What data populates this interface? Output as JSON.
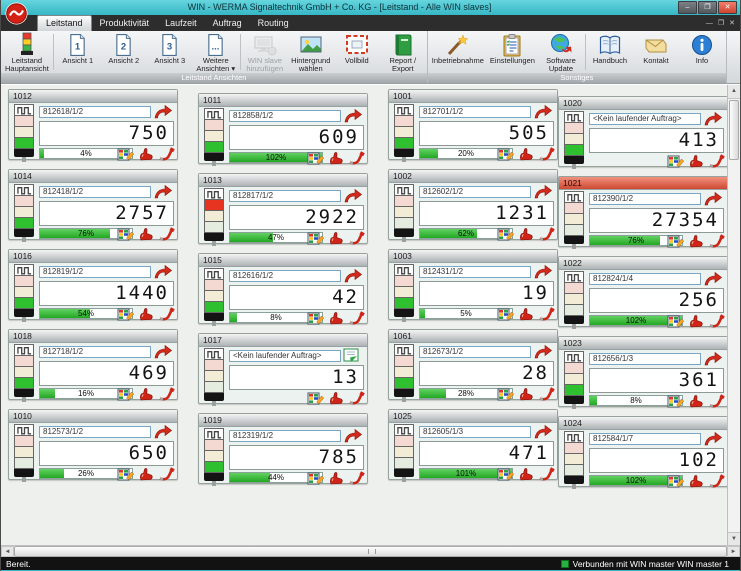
{
  "window": {
    "title": "WIN - WERMA Signaltechnik GmbH + Co. KG - [Leitstand - Alle WIN slaves]",
    "controls": {
      "minimize": "–",
      "maximize": "❐",
      "close": "✕"
    },
    "mdi_controls": {
      "minimize": "—",
      "restore": "❐",
      "close": "✕"
    }
  },
  "tabs": [
    {
      "label": "Leitstand",
      "active": true
    },
    {
      "label": "Produktivität",
      "active": false
    },
    {
      "label": "Laufzeit",
      "active": false
    },
    {
      "label": "Auftrag",
      "active": false
    },
    {
      "label": "Routing",
      "active": false
    }
  ],
  "ribbon": {
    "groups": [
      {
        "caption": "Leitstand Ansichten",
        "buttons": [
          {
            "label": "Leitstand\nHauptansicht",
            "icon": "signal-tower-icon"
          },
          {
            "label": "Ansicht 1",
            "icon": "page-1-icon",
            "sep_before": true
          },
          {
            "label": "Ansicht 2",
            "icon": "page-2-icon"
          },
          {
            "label": "Ansicht 3",
            "icon": "page-3-icon"
          },
          {
            "label": "Weitere\nAnsichten ▾",
            "icon": "page-more-icon"
          },
          {
            "label": "WIN slave\nhinzufügen",
            "icon": "monitor-add-icon",
            "disabled": true,
            "sep_before": true
          },
          {
            "label": "Hintergrund\nwählen",
            "icon": "picture-icon"
          },
          {
            "label": "Vollbild",
            "icon": "fullscreen-icon"
          },
          {
            "label": "Report /\nExport",
            "icon": "report-icon"
          }
        ]
      },
      {
        "caption": "Sonstiges",
        "buttons": [
          {
            "label": "Inbetriebnahme",
            "icon": "wand-icon"
          },
          {
            "label": "Einstellungen",
            "icon": "clipboard-icon"
          },
          {
            "label": "Software\nUpdate",
            "icon": "globe-icon"
          },
          {
            "label": "Handbuch",
            "icon": "book-icon",
            "sep_before": true
          },
          {
            "label": "Kontakt",
            "icon": "envelope-icon"
          },
          {
            "label": "Info",
            "icon": "info-icon"
          }
        ]
      }
    ]
  },
  "panels": [
    {
      "col": 0,
      "id": "1012",
      "order": "812618/1/2",
      "value": "750",
      "pct": "4%",
      "tower": "green",
      "alarm": false,
      "action": "arrow"
    },
    {
      "col": 0,
      "id": "1014",
      "order": "812418/1/2",
      "value": "2757",
      "pct": "76%",
      "tower": "green",
      "alarm": false,
      "action": "arrow"
    },
    {
      "col": 0,
      "id": "1016",
      "order": "812819/1/2",
      "value": "1440",
      "pct": "54%",
      "tower": "green",
      "alarm": false,
      "action": "arrow"
    },
    {
      "col": 0,
      "id": "1018",
      "order": "812718/1/2",
      "value": "469",
      "pct": "16%",
      "tower": "green",
      "alarm": false,
      "action": "arrow"
    },
    {
      "col": 0,
      "id": "1010",
      "order": "812573/1/2",
      "value": "650",
      "pct": "26%",
      "tower": "off",
      "alarm": false,
      "action": "arrow"
    },
    {
      "col": 1,
      "id": "1011",
      "order": "812858/1/2",
      "value": "609",
      "pct": "102%",
      "tower": "green",
      "alarm": false,
      "action": "arrow"
    },
    {
      "col": 1,
      "id": "1013",
      "order": "812817/1/2",
      "value": "2922",
      "pct": "47%",
      "tower": "red",
      "alarm": false,
      "action": "arrow"
    },
    {
      "col": 1,
      "id": "1015",
      "order": "812616/1/2",
      "value": "42",
      "pct": "8%",
      "tower": "green",
      "alarm": false,
      "action": "arrow"
    },
    {
      "col": 1,
      "id": "1017",
      "order": "<Kein laufender Auftrag>",
      "value": "13",
      "pct": "",
      "tower": "off",
      "alarm": false,
      "action": "doc"
    },
    {
      "col": 1,
      "id": "1019",
      "order": "812319/1/2",
      "value": "785",
      "pct": "44%",
      "tower": "green",
      "alarm": false,
      "action": "arrow"
    },
    {
      "col": 2,
      "id": "1001",
      "order": "812701/1/2",
      "value": "505",
      "pct": "20%",
      "tower": "green",
      "alarm": false,
      "action": "arrow"
    },
    {
      "col": 2,
      "id": "1002",
      "order": "812602/1/2",
      "value": "1231",
      "pct": "62%",
      "tower": "off",
      "alarm": false,
      "action": "arrow"
    },
    {
      "col": 2,
      "id": "1003",
      "order": "812431/1/2",
      "value": "19",
      "pct": "5%",
      "tower": "green",
      "alarm": false,
      "action": "arrow"
    },
    {
      "col": 2,
      "id": "1061",
      "order": "812673/1/2",
      "value": "28",
      "pct": "28%",
      "tower": "green",
      "alarm": false,
      "action": "arrow"
    },
    {
      "col": 2,
      "id": "1025",
      "order": "812605/1/3",
      "value": "471",
      "pct": "101%",
      "tower": "off",
      "alarm": false,
      "action": "arrow"
    },
    {
      "col": 3,
      "id": "1020",
      "order": "<Kein laufender Auftrag>",
      "value": "413",
      "pct": "",
      "tower": "green",
      "alarm": false,
      "action": "arrow"
    },
    {
      "col": 3,
      "id": "1021",
      "order": "812390/1/2",
      "value": "27354",
      "pct": "76%",
      "tower": "off",
      "alarm": true,
      "action": "arrow"
    },
    {
      "col": 3,
      "id": "1022",
      "order": "812824/1/4",
      "value": "256",
      "pct": "102%",
      "tower": "off",
      "alarm": false,
      "action": "arrow"
    },
    {
      "col": 3,
      "id": "1023",
      "order": "812656/1/3",
      "value": "361",
      "pct": "8%",
      "tower": "green",
      "alarm": false,
      "action": "arrow"
    },
    {
      "col": 3,
      "id": "1024",
      "order": "812584/1/7",
      "value": "102",
      "pct": "102%",
      "tower": "off",
      "alarm": false,
      "action": "arrow"
    }
  ],
  "statusbar": {
    "left": "Bereit.",
    "right": "Verbunden mit WIN master WIN master 1"
  },
  "scrollbar": {
    "left": "◄",
    "right": "►",
    "up": "▲",
    "down": "▼"
  },
  "colors": {
    "titlebar": "#36b7c5",
    "green_fill": "#2fc030",
    "alarm_header": "#ce4832",
    "status_ok": "#25b33e"
  }
}
